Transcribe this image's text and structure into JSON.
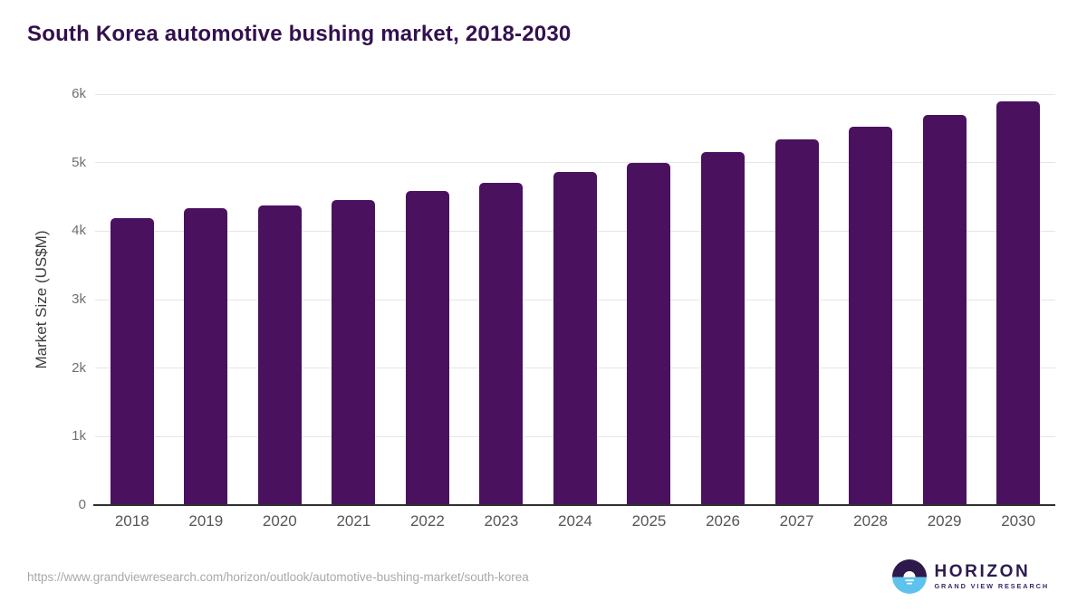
{
  "chart_data": {
    "type": "bar",
    "title": "South Korea automotive bushing market, 2018-2030",
    "categories": [
      "2018",
      "2019",
      "2020",
      "2021",
      "2022",
      "2023",
      "2024",
      "2025",
      "2026",
      "2027",
      "2028",
      "2029",
      "2030"
    ],
    "values": [
      4190,
      4330,
      4370,
      4450,
      4580,
      4710,
      4860,
      5000,
      5160,
      5340,
      5520,
      5700,
      5900
    ],
    "series_name": "Market Size (US$M)",
    "xlabel": "",
    "ylabel": "Market Size (US$M)",
    "ylim": [
      0,
      6000
    ],
    "yticks": [
      {
        "value": 0,
        "label": "0"
      },
      {
        "value": 1000,
        "label": "1k"
      },
      {
        "value": 2000,
        "label": "2k"
      },
      {
        "value": 3000,
        "label": "3k"
      },
      {
        "value": 4000,
        "label": "4k"
      },
      {
        "value": 5000,
        "label": "5k"
      },
      {
        "value": 6000,
        "label": "6k"
      }
    ],
    "grid": "horizontal-light",
    "legend": "none",
    "bar_color": "#4a115f"
  },
  "footer": {
    "source_url": "https://www.grandviewresearch.com/horizon/outlook/automotive-bushing-market/south-korea",
    "logo": {
      "brand": "HORIZON",
      "subtitle": "GRAND VIEW RESEARCH",
      "icon": "horizon-sunrise-icon",
      "icon_colors": {
        "top": "#2d1a4b",
        "bottom": "#5ec2ec",
        "sun": "#ffffff"
      }
    }
  },
  "colors": {
    "title": "#33104e",
    "bar": "#4a115f",
    "gridline": "#e6e6e6",
    "axis_line": "#2f2f2f",
    "tick_label": "#6f6f6f",
    "x_label": "#565656",
    "axis_title": "#3c3c3c",
    "url_text": "#a9a9a9",
    "background": "#ffffff"
  }
}
